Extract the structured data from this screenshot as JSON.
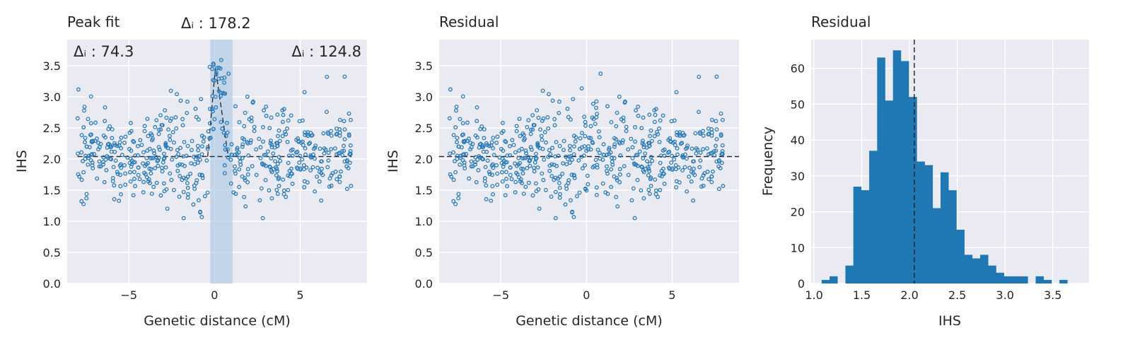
{
  "chart_data": [
    {
      "type": "scatter",
      "title": "Peak fit",
      "xlabel": "Genetic distance (cM)",
      "ylabel": "IHS",
      "xlim": [
        -8.6,
        8.9
      ],
      "ylim": [
        0,
        3.92
      ],
      "xticks": [
        -5,
        0,
        5
      ],
      "xtick_labels": [
        "−5",
        "0",
        "5"
      ],
      "yticks": [
        0,
        0.5,
        1,
        1.5,
        2,
        2.5,
        3,
        3.5
      ],
      "ytick_labels": [
        "0.0",
        "0.5",
        "1.0",
        "1.5",
        "2.0",
        "2.5",
        "3.0",
        "3.5"
      ],
      "grid": true,
      "background": "#eaeaf2",
      "point_color": "#2b7bba",
      "n_points": 600,
      "x_range": [
        -8,
        8
      ],
      "baseline": 2.04,
      "noise_sd": 0.38,
      "highlight_band": {
        "x0": -0.25,
        "x1": 1.05,
        "color": "#a6c4e0"
      },
      "peak_fit": {
        "center": 0.05,
        "peak": 3.47,
        "half_width_left": 0.45,
        "half_width_right": 0.75
      },
      "annotations": [
        {
          "text": "Δᵢ : 74.3",
          "position": "top-left"
        },
        {
          "text": "Δᵢ : 178.2",
          "position": "above-peak"
        },
        {
          "text": "Δᵢ : 124.8",
          "position": "top-right"
        }
      ]
    },
    {
      "type": "scatter",
      "title": "Residual",
      "xlabel": "Genetic distance (cM)",
      "ylabel": "IHS",
      "xlim": [
        -8.6,
        8.9
      ],
      "ylim": [
        0,
        3.92
      ],
      "xticks": [
        -5,
        0,
        5
      ],
      "xtick_labels": [
        "−5",
        "0",
        "5"
      ],
      "yticks": [
        0,
        0.5,
        1,
        1.5,
        2,
        2.5,
        3,
        3.5
      ],
      "ytick_labels": [
        "0.0",
        "0.5",
        "1.0",
        "1.5",
        "2.0",
        "2.5",
        "3.0",
        "3.5"
      ],
      "grid": true,
      "background": "#eaeaf2",
      "point_color": "#2b7bba",
      "n_points": 600,
      "x_range": [
        -8,
        8
      ],
      "baseline": 2.04,
      "noise_sd": 0.38
    },
    {
      "type": "bar",
      "title": "Residual",
      "xlabel": "IHS",
      "ylabel": "Frequency",
      "xlim": [
        0.97,
        3.88
      ],
      "ylim": [
        0,
        68
      ],
      "xticks": [
        1.0,
        1.5,
        2.0,
        2.5,
        3.0,
        3.5
      ],
      "xtick_labels": [
        "1.0",
        "1.5",
        "2.0",
        "2.5",
        "3.0",
        "3.5"
      ],
      "yticks": [
        0,
        10,
        20,
        30,
        40,
        50,
        60
      ],
      "ytick_labels": [
        "0",
        "10",
        "20",
        "30",
        "40",
        "50",
        "60"
      ],
      "grid": true,
      "background": "#eaeaf2",
      "bar_color": "#1f77b4",
      "bin_edges": [
        1.08,
        1.163,
        1.246,
        1.329,
        1.412,
        1.495,
        1.578,
        1.661,
        1.744,
        1.827,
        1.91,
        1.993,
        2.076,
        2.159,
        2.242,
        2.325,
        2.408,
        2.491,
        2.574,
        2.657,
        2.74,
        2.823,
        2.906,
        2.989,
        3.072,
        3.155,
        3.238,
        3.321,
        3.404,
        3.487,
        3.57,
        3.653,
        3.736
      ],
      "values": [
        1,
        2,
        0,
        5,
        27,
        26,
        37,
        63,
        51,
        65,
        62,
        52,
        34,
        33,
        21,
        31,
        26,
        15,
        8,
        7,
        8,
        5,
        3,
        2,
        2,
        2,
        0,
        2,
        1,
        0,
        1,
        0
      ],
      "vline": 2.05
    }
  ]
}
